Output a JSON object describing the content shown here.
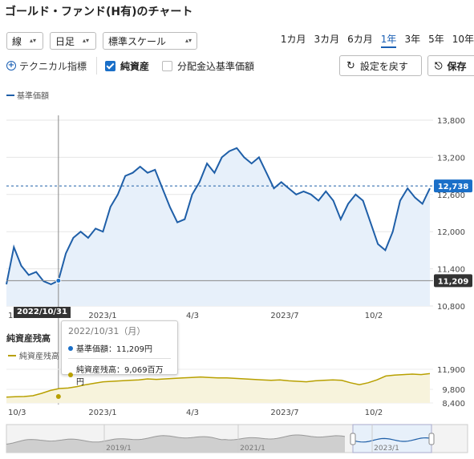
{
  "title": "ゴールド・ファンド(H有)のチャート",
  "controls": {
    "chart_type": "線",
    "interval": "日足",
    "scale": "標準スケール",
    "periods": [
      "1カ月",
      "3カ月",
      "6カ月",
      "1年",
      "3年",
      "5年",
      "10年"
    ],
    "active_period": "1年"
  },
  "options": {
    "technical": "テクニカル指標",
    "net_assets": "純資産",
    "dividend_nav": "分配金込基準価額",
    "reset": "設定を戻す",
    "save": "保存"
  },
  "colors": {
    "accent": "#1a5fb4",
    "nav_line": "#1f5fa8",
    "assets_line": "#b8a000",
    "fill": "#e7f0fa"
  },
  "main_legend": "基準価額",
  "crosshair_date": "2022/10/31",
  "current_label": "12,738",
  "cross_label": "11,209",
  "assets_title": "純資産残高",
  "assets_legend": "純資産残高",
  "tooltip": {
    "date": "2022/10/31（月）",
    "nav": "基準価額：11,209円",
    "assets": "純資産残高：9,069百万円"
  },
  "chart_data": {
    "type": "line",
    "main_y_ticks": [
      "13,800",
      "13,200",
      "12,600",
      "12,000",
      "11,400",
      "10,800"
    ],
    "ylim": [
      10800,
      13800
    ],
    "x_ticks": [
      "1",
      "2023/1",
      "4/3",
      "2023/7",
      "10/2"
    ],
    "series": [
      {
        "values": [
          11150,
          11750,
          11450,
          11300,
          11350,
          11200,
          11150,
          11209,
          11650,
          11900,
          12000,
          11900,
          12050,
          12000,
          12400,
          12600,
          12900,
          12950,
          13050,
          12950,
          13000,
          12700,
          12400,
          12150,
          12200,
          12600,
          12800,
          13100,
          12950,
          13200,
          13300,
          13350,
          13200,
          13100,
          13200,
          12950,
          12700,
          12800,
          12700,
          12600,
          12650,
          12600,
          12500,
          12650,
          12500,
          12200,
          12450,
          12600,
          12500,
          12150,
          11800,
          11700,
          12000,
          12500,
          12700,
          12550,
          12450,
          12700
        ]
      }
    ],
    "sub_y_ticks": [
      "11,900",
      "9,800",
      "8,400"
    ],
    "sub_ylim": [
      8400,
      11900
    ],
    "sub_x_ticks": [
      "10/3",
      "2023/1",
      "4/3",
      "2023/7",
      "10/2"
    ],
    "assets_values": [
      9000,
      9050,
      9069,
      9150,
      9400,
      9700,
      9900,
      9950,
      10100,
      10300,
      10450,
      10600,
      10650,
      10700,
      10750,
      10800,
      10900,
      10850,
      10900,
      10950,
      11000,
      11050,
      11100,
      11050,
      11000,
      11000,
      10950,
      10900,
      10850,
      10800,
      10750,
      10800,
      10700,
      10650,
      10600,
      10700,
      10750,
      10800,
      10750,
      10500,
      10300,
      10500,
      10800,
      11200,
      11300,
      11350,
      11400,
      11350,
      11450
    ],
    "nav_x_ticks": [
      "2019/1",
      "2021/1",
      "2023/1"
    ]
  }
}
